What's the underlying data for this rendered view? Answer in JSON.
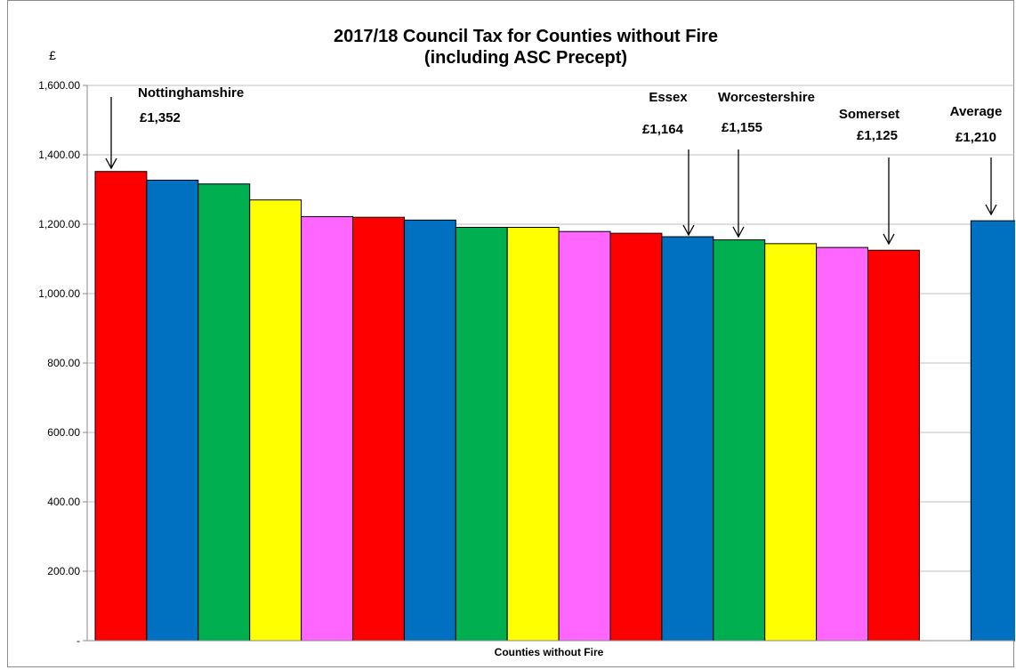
{
  "chart_data": {
    "type": "bar",
    "title_line1": "2017/18 Council Tax for Counties without Fire",
    "title_line2": "(including ASC Precept)",
    "ylabel": "£",
    "xlabel": "Counties without Fire",
    "ylim": [
      0,
      1600
    ],
    "yticks": [
      {
        "value": 0,
        "label": "-"
      },
      {
        "value": 200,
        "label": "200.00"
      },
      {
        "value": 400,
        "label": "400.00"
      },
      {
        "value": 600,
        "label": "600.00"
      },
      {
        "value": 800,
        "label": "800.00"
      },
      {
        "value": 1000,
        "label": "1,000.00"
      },
      {
        "value": 1200,
        "label": "1,200.00"
      },
      {
        "value": 1400,
        "label": "1,400.00"
      },
      {
        "value": 1600,
        "label": "1,600.00"
      }
    ],
    "grid": true,
    "bars": [
      {
        "value": 1352,
        "color": "#FF0000"
      },
      {
        "value": 1327,
        "color": "#0070C0"
      },
      {
        "value": 1316,
        "color": "#00B050"
      },
      {
        "value": 1270,
        "color": "#FFFF00"
      },
      {
        "value": 1222,
        "color": "#FF66FF"
      },
      {
        "value": 1220,
        "color": "#FF0000"
      },
      {
        "value": 1212,
        "color": "#0070C0"
      },
      {
        "value": 1191,
        "color": "#00B050"
      },
      {
        "value": 1191,
        "color": "#FFFF00"
      },
      {
        "value": 1179,
        "color": "#FF66FF"
      },
      {
        "value": 1174,
        "color": "#FF0000"
      },
      {
        "value": 1164,
        "color": "#0070C0"
      },
      {
        "value": 1155,
        "color": "#00B050"
      },
      {
        "value": 1144,
        "color": "#FFFF00"
      },
      {
        "value": 1133,
        "color": "#FF66FF"
      },
      {
        "value": 1125,
        "color": "#FF0000"
      },
      {
        "value": null,
        "color": null
      },
      {
        "value": 1210,
        "color": "#0070C0"
      }
    ],
    "annotations": [
      {
        "bar": 0,
        "name": "Nottinghamshire",
        "amount": "£1,352"
      },
      {
        "bar": 11,
        "name": "Essex",
        "amount": "£1,164"
      },
      {
        "bar": 12,
        "name": "Worcestershire",
        "amount": "£1,155"
      },
      {
        "bar": 15,
        "name": "Somerset",
        "amount": "£1,125"
      },
      {
        "bar": 17,
        "name": "Average",
        "amount": "£1,210"
      }
    ]
  }
}
